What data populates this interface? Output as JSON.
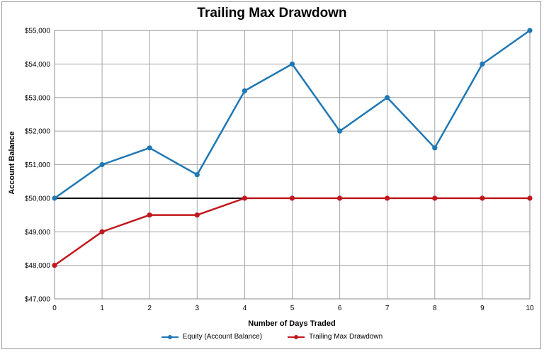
{
  "chart_data": {
    "type": "line",
    "title": "Trailing Max Drawdown",
    "xlabel": "Number of Days  Traded",
    "ylabel": "Account Balance",
    "x": [
      0,
      1,
      2,
      3,
      4,
      5,
      6,
      7,
      8,
      9,
      10
    ],
    "xlim": [
      0,
      10
    ],
    "ylim": [
      47000,
      55000
    ],
    "ytick_values": [
      47000,
      48000,
      49000,
      50000,
      51000,
      52000,
      53000,
      54000,
      55000
    ],
    "ytick_labels": [
      "$47,000",
      "$48,000",
      "$49,000",
      "$50,000",
      "$51,000",
      "$52,000",
      "$53,000",
      "$54,000",
      "$55,000"
    ],
    "xtick_labels": [
      "0",
      "1",
      "2",
      "3",
      "4",
      "5",
      "6",
      "7",
      "8",
      "9",
      "10"
    ],
    "grid": true,
    "legend_position": "bottom",
    "series": [
      {
        "name": "Equity (Account Balance)",
        "color": "#1f77b4",
        "values": [
          50000,
          51000,
          51500,
          50700,
          53200,
          54000,
          52000,
          53000,
          51500,
          54000,
          55000
        ]
      },
      {
        "name": "Trailing Max Drawdown",
        "color": "#c0171c",
        "values": [
          48000,
          49000,
          49500,
          49500,
          50000,
          50000,
          50000,
          50000,
          50000,
          50000,
          50000
        ]
      }
    ],
    "reference_line": {
      "y": 50000,
      "x_range": [
        0,
        4
      ],
      "color": "#000000"
    }
  }
}
